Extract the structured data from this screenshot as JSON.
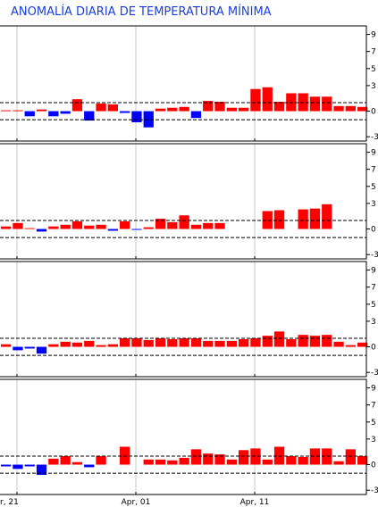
{
  "title": "ANOMALÍA DIARIA DE TEMPERATURA MÍNIMA",
  "colors": {
    "positive": "#ff0000",
    "negative": "#0000ff",
    "title": "#1a3fe0",
    "frame": "#000000",
    "grid": "#c8c8c8"
  },
  "chart_data": [
    {
      "type": "bar",
      "ylim": [
        -3.5,
        10
      ],
      "yticks": [
        -3,
        0,
        3,
        5,
        7,
        9
      ],
      "ytick_labels": [
        "-3",
        "0",
        "3",
        "5",
        "7",
        "9"
      ],
      "reference_lines": [
        1.0,
        -1.0
      ],
      "xtick_labels": [
        "r, 21",
        "Apr, 01",
        "Apr, 11"
      ],
      "values": [
        0.1,
        0.1,
        -0.6,
        0.2,
        -0.6,
        -0.3,
        1.4,
        -1.1,
        0.9,
        0.8,
        -0.2,
        -1.3,
        -1.9,
        0.3,
        0.4,
        0.5,
        -0.8,
        1.2,
        1.1,
        0.4,
        0.4,
        2.6,
        2.8,
        1.1,
        2.1,
        2.1,
        1.7,
        1.7,
        0.6,
        0.6,
        0.5
      ]
    },
    {
      "type": "bar",
      "ylim": [
        -3.5,
        10
      ],
      "yticks": [
        -3,
        0,
        3,
        5,
        7,
        9
      ],
      "ytick_labels": [
        "-3",
        "0",
        "3",
        "5",
        "7",
        "9"
      ],
      "reference_lines": [
        1.0,
        -1.0
      ],
      "xtick_labels": [
        "r, 21",
        "Apr, 01",
        "Apr, 11"
      ],
      "values": [
        0.3,
        0.7,
        0.1,
        -0.3,
        0.3,
        0.5,
        0.9,
        0.4,
        0.5,
        -0.2,
        0.9,
        -0.1,
        0.2,
        1.2,
        0.8,
        1.6,
        0.5,
        0.7,
        0.7,
        0,
        0,
        0,
        2.1,
        2.2,
        0,
        2.3,
        2.4,
        2.9,
        0,
        0,
        0
      ]
    },
    {
      "type": "bar",
      "ylim": [
        -3.5,
        10
      ],
      "yticks": [
        -3,
        0,
        3,
        5,
        7,
        9
      ],
      "ytick_labels": [
        "-3",
        "0",
        "3",
        "5",
        "7",
        "9"
      ],
      "reference_lines": [
        1.0,
        -1.0
      ],
      "xtick_labels": [
        "r, 21",
        "Apr, 01",
        "Apr, 11"
      ],
      "values": [
        0.3,
        -0.4,
        -0.2,
        -0.8,
        0.3,
        0.6,
        0.5,
        0.7,
        0.2,
        0.3,
        1.0,
        1.0,
        0.8,
        1.0,
        0.9,
        1.0,
        1.0,
        0.7,
        0.7,
        0.7,
        0.9,
        1.0,
        1.3,
        1.8,
        0.9,
        1.4,
        1.3,
        1.4,
        0.6,
        0.2,
        0.5
      ]
    },
    {
      "type": "bar",
      "ylim": [
        -3.5,
        10
      ],
      "yticks": [
        -3,
        0,
        3,
        5,
        7,
        9
      ],
      "ytick_labels": [
        "-3",
        "0",
        "3",
        "5",
        "7",
        "9"
      ],
      "reference_lines": [
        1.0,
        -1.0
      ],
      "xtick_labels": [
        "r, 21",
        "Apr, 01",
        "Apr, 11"
      ],
      "values": [
        -0.2,
        -0.5,
        -0.2,
        -1.2,
        0.7,
        1.0,
        0.3,
        -0.3,
        1.0,
        0,
        2.1,
        0,
        0.6,
        0.6,
        0.5,
        0.8,
        1.8,
        1.3,
        1.2,
        0.6,
        1.7,
        1.9,
        0.6,
        2.1,
        1.0,
        0.9,
        1.9,
        1.9,
        0.4,
        1.8,
        1.0
      ]
    }
  ]
}
